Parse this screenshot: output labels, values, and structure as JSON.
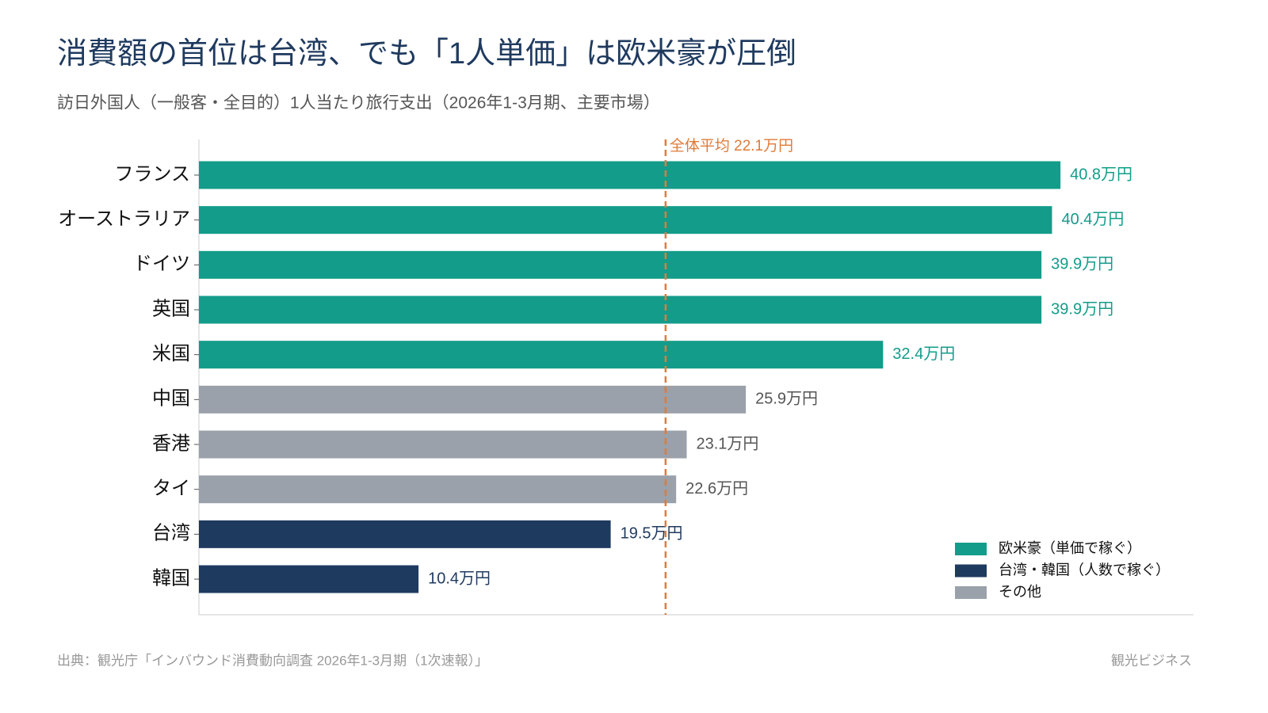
{
  "chart_data": {
    "type": "bar",
    "orientation": "horizontal",
    "title": "消費額の首位は台湾、でも「1人単価」は欧米豪が圧倒",
    "subtitle": "訪日外国人（一般客・全目的）1人当たり旅行支出（2026年1-3月期、主要市場）",
    "categories": [
      "フランス",
      "オーストラリア",
      "ドイツ",
      "英国",
      "米国",
      "中国",
      "香港",
      "タイ",
      "台湾",
      "韓国"
    ],
    "series": [
      {
        "name": "欧米豪（単価で稼ぐ）",
        "color": "#139c8a",
        "label_color": "#139c8a",
        "values": [
          40.8,
          40.4,
          39.9,
          39.9,
          32.4,
          null,
          null,
          null,
          null,
          null
        ],
        "value_labels": [
          "40.8万円",
          "40.4万円",
          "39.9万円",
          "39.9万円",
          "32.4万円",
          null,
          null,
          null,
          null,
          null
        ]
      },
      {
        "name": "台湾・韓国（人数で稼ぐ）",
        "color": "#1f3a5f",
        "label_color": "#1f3a5f",
        "values": [
          null,
          null,
          null,
          null,
          null,
          null,
          null,
          null,
          19.5,
          10.4
        ],
        "value_labels": [
          null,
          null,
          null,
          null,
          null,
          null,
          null,
          null,
          "19.5万円",
          "10.4万円"
        ]
      },
      {
        "name": "その他",
        "color": "#9aa1aa",
        "label_color": "#555555",
        "values": [
          null,
          null,
          null,
          null,
          null,
          25.9,
          23.1,
          22.6,
          null,
          null
        ],
        "value_labels": [
          null,
          null,
          null,
          null,
          null,
          "25.9万円",
          "23.1万円",
          "22.6万円",
          null,
          null
        ]
      }
    ],
    "xlim": [
      0,
      47.1
    ],
    "reference_line": {
      "value": 22.1,
      "label": "全体平均 22.1万円",
      "color": "#e07b39"
    },
    "legend": "lower right",
    "source": "出典：観光庁「インバウンド消費動向調査 2026年1-3月期（1次速報）」",
    "brand": "観光ビジネス"
  }
}
